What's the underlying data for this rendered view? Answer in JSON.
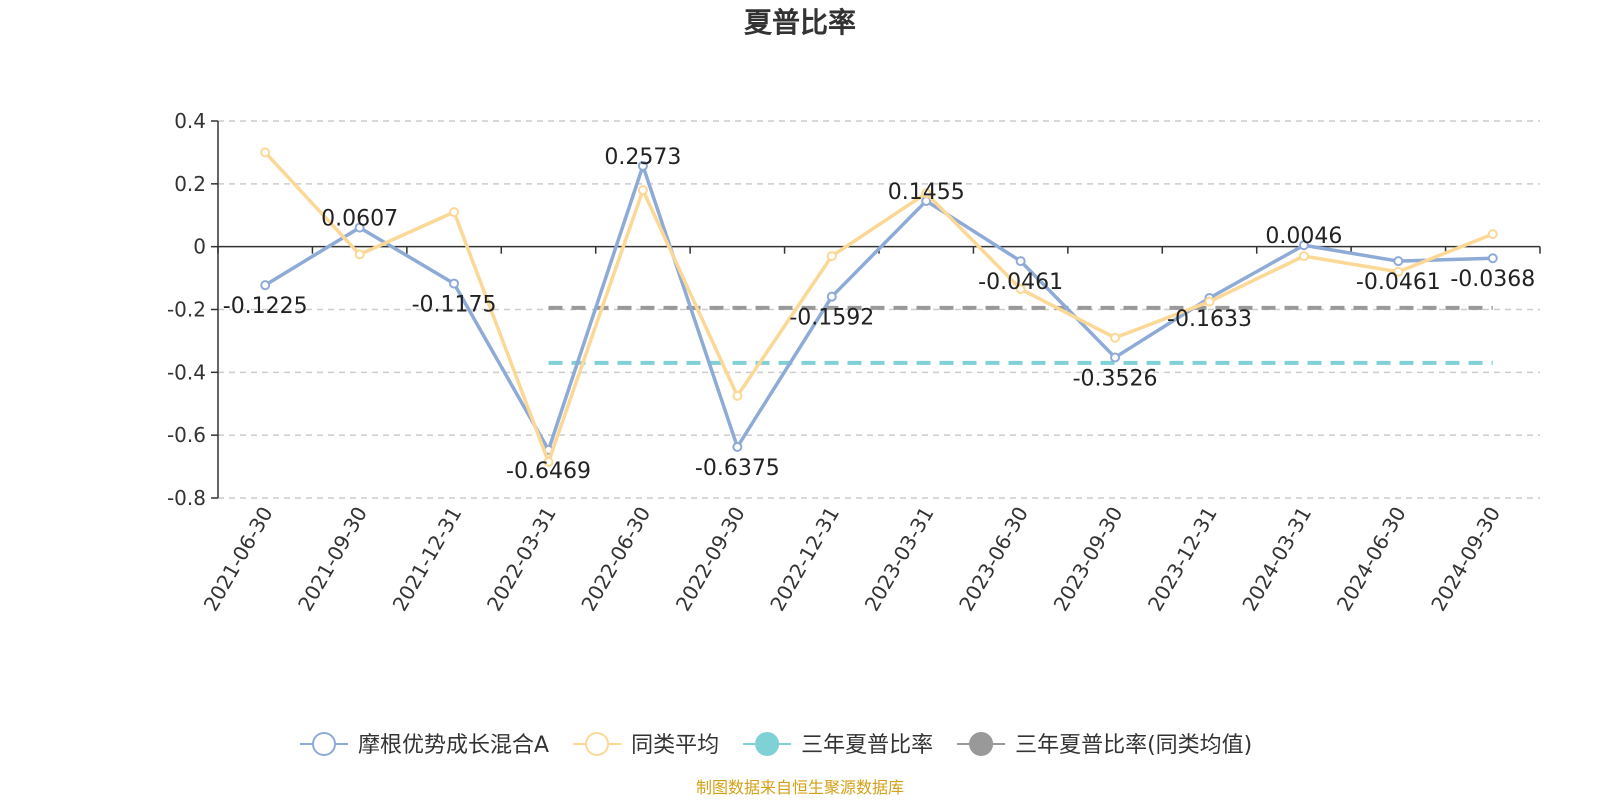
{
  "chart_data": {
    "type": "line",
    "title": "夏普比率",
    "categories": [
      "2021-06-30",
      "2021-09-30",
      "2021-12-31",
      "2022-03-31",
      "2022-06-30",
      "2022-09-30",
      "2022-12-31",
      "2023-03-31",
      "2023-06-30",
      "2023-09-30",
      "2023-12-31",
      "2024-03-31",
      "2024-06-30",
      "2024-09-30"
    ],
    "y_ticks": [
      "0.4",
      "0.2",
      "0",
      "-0.2",
      "-0.4",
      "-0.6",
      "-0.8"
    ],
    "ylim": [
      -0.8,
      0.4
    ],
    "grid": true,
    "legend_position": "bottom",
    "series": [
      {
        "name": "摩根优势成长混合A",
        "color": "#8eaad6",
        "values": [
          -0.1225,
          0.0607,
          -0.1175,
          -0.6469,
          0.2573,
          -0.6375,
          -0.1592,
          0.1455,
          -0.0461,
          -0.3526,
          -0.1633,
          0.0046,
          -0.0461,
          -0.0368
        ],
        "labels": [
          "-0.1225",
          "0.0607",
          "-0.1175",
          "-0.6469",
          "0.2573",
          "-0.6375",
          "-0.1592",
          "0.1455",
          "-0.0461",
          "-0.3526",
          "-0.1633",
          "0.0046",
          "-0.0461",
          "-0.0368"
        ]
      },
      {
        "name": "同类平均",
        "color": "#fbd896",
        "values": [
          0.3,
          -0.025,
          0.11,
          -0.685,
          0.18,
          -0.475,
          -0.03,
          0.17,
          -0.135,
          -0.29,
          -0.175,
          -0.03,
          -0.08,
          0.04
        ]
      }
    ],
    "reference_lines": [
      {
        "name": "三年夏普比率",
        "color": "#7fd1d6",
        "value": -0.37,
        "from": "2022-03-31",
        "to": "2024-09-30"
      },
      {
        "name": "三年夏普比率(同类均值)",
        "color": "#999999",
        "value": -0.195,
        "from": "2022-03-31",
        "to": "2024-09-30"
      }
    ]
  },
  "legend": [
    {
      "label": "摩根优势成长混合A",
      "color": "#8eaad6",
      "style": "hollow"
    },
    {
      "label": "同类平均",
      "color": "#fbd896",
      "style": "hollow"
    },
    {
      "label": "三年夏普比率",
      "color": "#7fd1d6",
      "style": "filled"
    },
    {
      "label": "三年夏普比率(同类均值)",
      "color": "#999999",
      "style": "filled"
    }
  ],
  "source": {
    "text": "制图数据来自恒生聚源数据库",
    "color": "#d4a017"
  }
}
